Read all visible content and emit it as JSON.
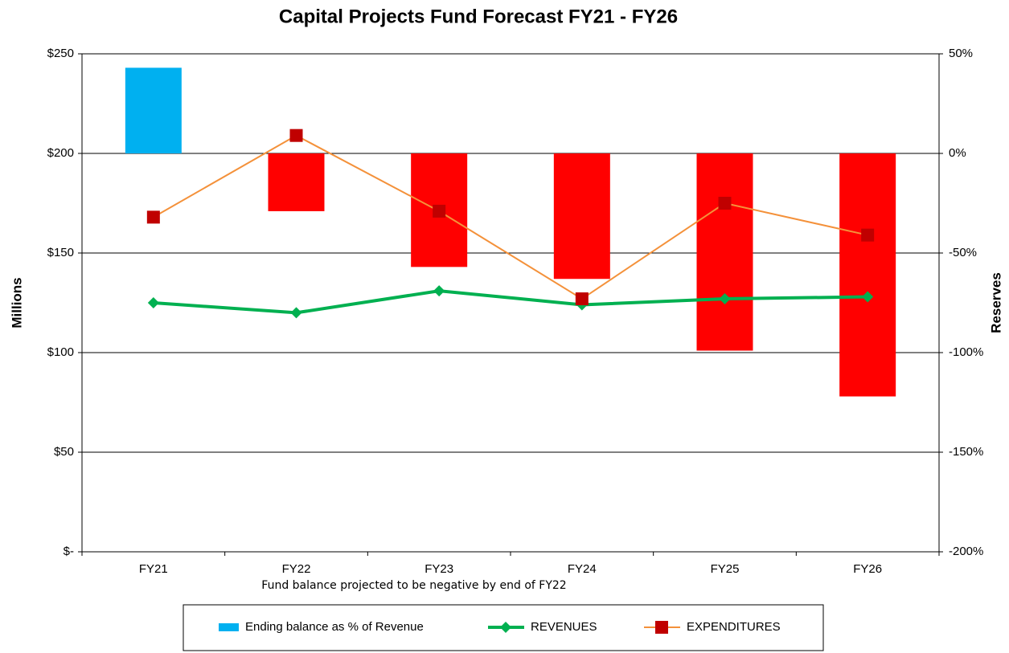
{
  "chart_data": {
    "type": "bar_line_combo",
    "title": "Capital Projects Fund Forecast FY21 - FY26",
    "y_label": "Millions",
    "y2_label": "Reserves",
    "annotation": "Fund balance projected to be negative by end of FY22",
    "categories": [
      "FY21",
      "FY22",
      "FY23",
      "FY24",
      "FY25",
      "FY26"
    ],
    "ylim": [
      0,
      250
    ],
    "yticks": [
      {
        "value": 0,
        "label": "$-"
      },
      {
        "value": 50,
        "label": "$50"
      },
      {
        "value": 100,
        "label": "$100"
      },
      {
        "value": 150,
        "label": "$150"
      },
      {
        "value": 200,
        "label": "$200"
      },
      {
        "value": 250,
        "label": "$250"
      }
    ],
    "y2lim": [
      -200,
      50
    ],
    "y2ticks": [
      {
        "value": -200,
        "label": "-200%"
      },
      {
        "value": -150,
        "label": "-150%"
      },
      {
        "value": -100,
        "label": "-100%"
      },
      {
        "value": -50,
        "label": "-50%"
      },
      {
        "value": 0,
        "label": "0%"
      },
      {
        "value": 50,
        "label": "50%"
      }
    ],
    "grid": true,
    "legend": "bottom",
    "series": [
      {
        "name": "Ending balance as % of Revenue",
        "kind": "bar",
        "axis": "y2",
        "color": "#00b0f0",
        "negative_color": "#ff0000",
        "values": [
          43,
          -29,
          -57,
          -63,
          -99,
          -122
        ]
      },
      {
        "name": "REVENUES",
        "kind": "line",
        "marker": "diamond",
        "color": "#00b050",
        "values": [
          125,
          120,
          131,
          124,
          127,
          128
        ]
      },
      {
        "name": "EXPENDITURES",
        "kind": "line",
        "marker": "square",
        "color": "#f4913a",
        "marker_color": "#c00000",
        "values": [
          168,
          209,
          171,
          127,
          175,
          159
        ]
      }
    ]
  }
}
